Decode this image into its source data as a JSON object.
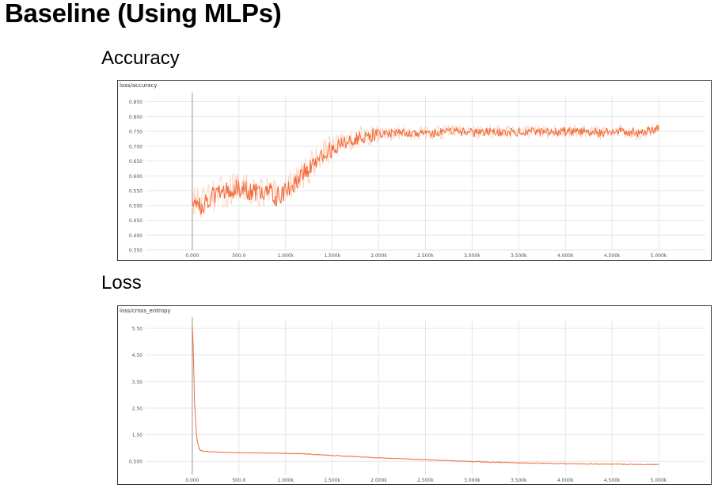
{
  "page": {
    "title": "Baseline (Using MLPs)"
  },
  "sections": [
    {
      "label": "Accuracy"
    },
    {
      "label": "Loss"
    }
  ],
  "chart_data": [
    {
      "type": "line",
      "title": "loss/accuracy",
      "color": "#f26b38",
      "raw_color": "#fbd0bd",
      "grid": true,
      "xlim": [
        -500,
        5500
      ],
      "ylim": [
        0.35,
        0.87
      ],
      "x_ticks": [
        0,
        500,
        1000,
        1500,
        2000,
        2500,
        3000,
        3500,
        4000,
        4500,
        5000
      ],
      "x_tick_labels": [
        "0.000",
        "500.0",
        "1.000k",
        "1.500k",
        "2.000k",
        "2.500k",
        "3.000k",
        "3.500k",
        "4.000k",
        "4.500k",
        "5.000k"
      ],
      "y_ticks": [
        0.35,
        0.4,
        0.45,
        0.5,
        0.55,
        0.6,
        0.65,
        0.7,
        0.75,
        0.8,
        0.85
      ],
      "y_tick_labels": [
        "0.350",
        "0.400",
        "0.450",
        "0.500",
        "0.550",
        "0.600",
        "0.650",
        "0.700",
        "0.750",
        "0.800",
        "0.850"
      ],
      "series": [
        {
          "x": [
            0,
            100,
            200,
            300,
            400,
            500,
            600,
            700,
            800,
            900,
            1000,
            1100,
            1200,
            1300,
            1400,
            1500,
            1600,
            1700,
            1800,
            1900,
            2000,
            2200,
            2400,
            2600,
            2800,
            3000,
            3200,
            3400,
            3600,
            3800,
            4000,
            4200,
            4400,
            4600,
            4800,
            5000
          ],
          "values": [
            0.52,
            0.5,
            0.53,
            0.54,
            0.55,
            0.56,
            0.55,
            0.54,
            0.55,
            0.53,
            0.55,
            0.58,
            0.61,
            0.64,
            0.67,
            0.69,
            0.71,
            0.72,
            0.73,
            0.735,
            0.74,
            0.745,
            0.745,
            0.745,
            0.75,
            0.745,
            0.75,
            0.745,
            0.75,
            0.745,
            0.75,
            0.75,
            0.745,
            0.75,
            0.745,
            0.76
          ]
        }
      ]
    },
    {
      "type": "line",
      "title": "loss/cross_entropy",
      "color": "#f26b38",
      "grid": true,
      "xlim": [
        -500,
        5500
      ],
      "ylim": [
        0,
        5.8
      ],
      "x_ticks": [
        0,
        500,
        1000,
        1500,
        2000,
        2500,
        3000,
        3500,
        4000,
        4500,
        5000
      ],
      "x_tick_labels": [
        "0.000",
        "500.0",
        "1.000k",
        "1.500k",
        "2.000k",
        "2.500k",
        "3.000k",
        "3.500k",
        "4.000k",
        "4.500k",
        "5.000k"
      ],
      "y_ticks": [
        0.5,
        1.5,
        2.5,
        3.5,
        4.5,
        5.5
      ],
      "y_tick_labels": [
        "0.500",
        "1.50",
        "2.50",
        "3.50",
        "4.50",
        "5.50"
      ],
      "series": [
        {
          "x": [
            0,
            10,
            25,
            50,
            75,
            100,
            150,
            200,
            300,
            500,
            800,
            1000,
            1200,
            1500,
            2000,
            2500,
            3000,
            3500,
            4000,
            4500,
            5000
          ],
          "values": [
            5.6,
            4.8,
            2.6,
            1.3,
            0.95,
            0.9,
            0.87,
            0.86,
            0.84,
            0.82,
            0.81,
            0.8,
            0.78,
            0.72,
            0.63,
            0.56,
            0.49,
            0.44,
            0.41,
            0.39,
            0.38
          ]
        }
      ]
    }
  ]
}
